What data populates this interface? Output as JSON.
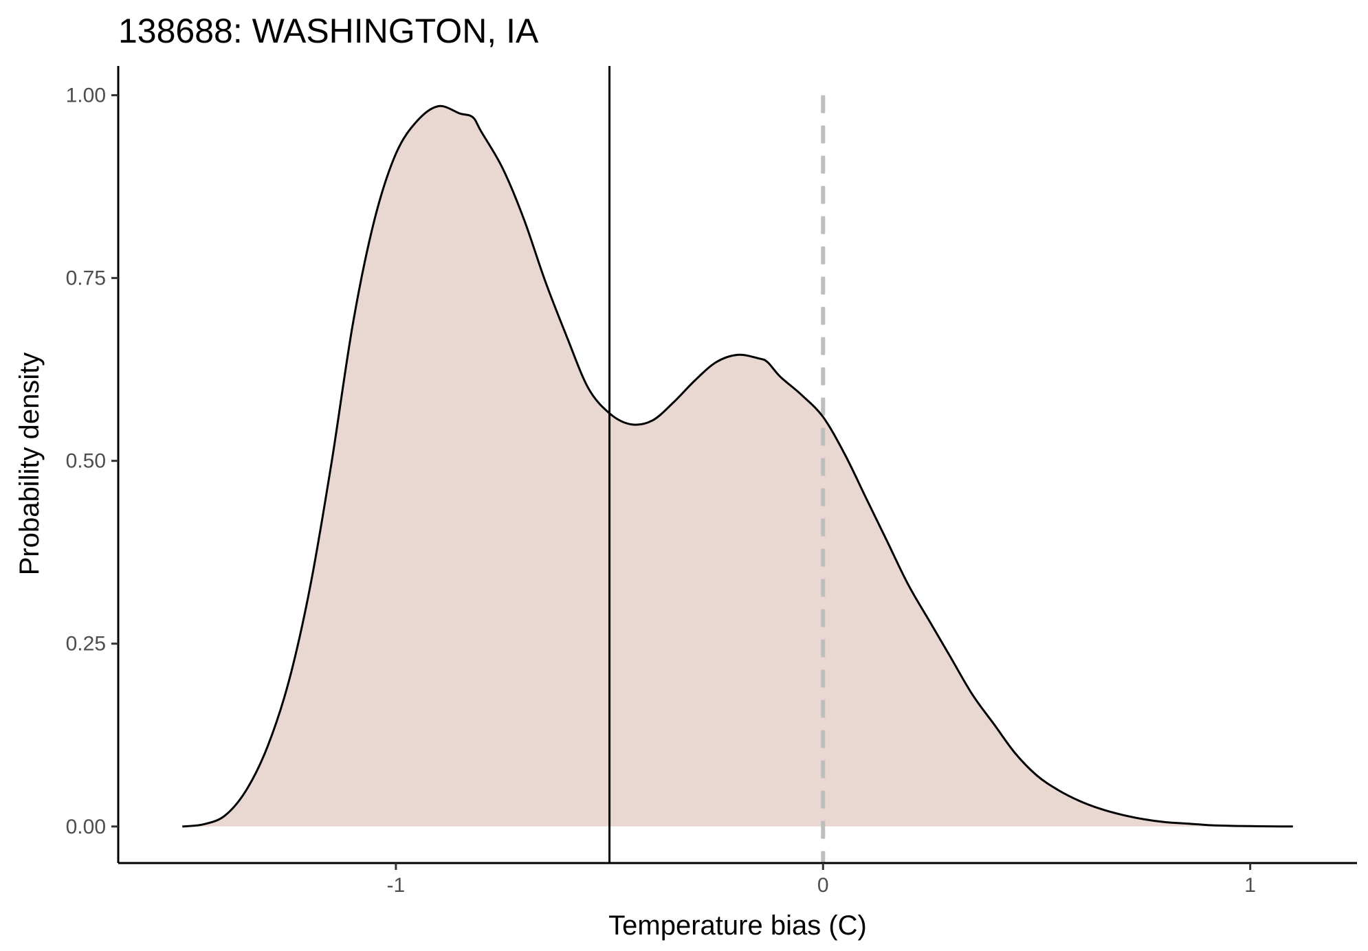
{
  "chart_data": {
    "type": "area",
    "title": "138688: WASHINGTON, IA",
    "xlabel": "Temperature bias (C)",
    "ylabel": "Probability density",
    "xlim": [
      -1.65,
      1.25
    ],
    "ylim": [
      -0.05,
      1.04
    ],
    "x_ticks": [
      {
        "value": -1,
        "label": "-1"
      },
      {
        "value": 0,
        "label": "0"
      },
      {
        "value": 1,
        "label": "1"
      }
    ],
    "y_ticks": [
      {
        "value": 0,
        "label": "0.00"
      },
      {
        "value": 0.25,
        "label": "0.25"
      },
      {
        "value": 0.5,
        "label": "0.50"
      },
      {
        "value": 0.75,
        "label": "0.75"
      },
      {
        "value": 1,
        "label": "1.00"
      }
    ],
    "grid": false,
    "series": [
      {
        "x": [
          -1.5,
          -1.45,
          -1.4,
          -1.35,
          -1.3,
          -1.25,
          -1.2,
          -1.15,
          -1.1,
          -1.05,
          -1.0,
          -0.95,
          -0.9,
          -0.85,
          -0.82,
          -0.8,
          -0.75,
          -0.7,
          -0.65,
          -0.6,
          -0.55,
          -0.5,
          -0.45,
          -0.4,
          -0.35,
          -0.3,
          -0.25,
          -0.2,
          -0.15,
          -0.13,
          -0.1,
          -0.05,
          0.0,
          0.05,
          0.1,
          0.15,
          0.2,
          0.25,
          0.3,
          0.35,
          0.4,
          0.45,
          0.5,
          0.55,
          0.6,
          0.65,
          0.7,
          0.75,
          0.8,
          0.85,
          0.9,
          0.95,
          1.0,
          1.05,
          1.1
        ],
        "y": [
          0.0,
          0.003,
          0.015,
          0.05,
          0.11,
          0.2,
          0.33,
          0.5,
          0.69,
          0.83,
          0.92,
          0.965,
          0.985,
          0.975,
          0.97,
          0.95,
          0.9,
          0.83,
          0.745,
          0.67,
          0.6,
          0.565,
          0.55,
          0.555,
          0.58,
          0.61,
          0.635,
          0.645,
          0.64,
          0.635,
          0.615,
          0.59,
          0.56,
          0.51,
          0.45,
          0.39,
          0.33,
          0.28,
          0.23,
          0.18,
          0.14,
          0.1,
          0.07,
          0.05,
          0.035,
          0.024,
          0.016,
          0.01,
          0.006,
          0.004,
          0.002,
          0.001,
          0.0005,
          0.0002,
          0.0
        ]
      }
    ],
    "annotations": [
      {
        "type": "vline",
        "x": -0.5,
        "style": "solid",
        "color": "#000000"
      },
      {
        "type": "vline",
        "x": 0,
        "style": "dashed",
        "color": "#bebebe"
      }
    ],
    "colors": {
      "fill": "#e9d7d2",
      "line": "#000000",
      "axis": "#000000",
      "zero_line": "#bebebe"
    }
  }
}
